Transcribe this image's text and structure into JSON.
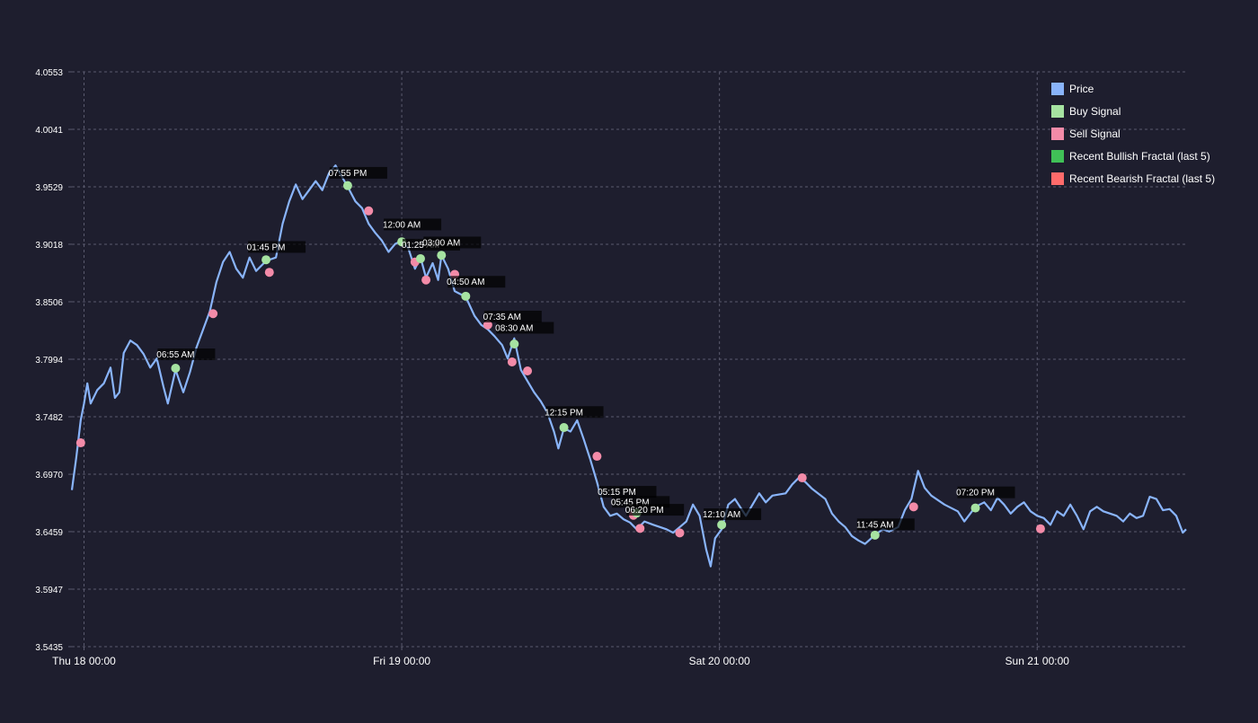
{
  "colors": {
    "background": "#1e1e2e",
    "grid": "#5a5a6e",
    "text": "#ffffff",
    "price": "#89b4fa",
    "buy": "#a6e3a1",
    "sell": "#f38ba8",
    "bullish_fractal": "#40c057",
    "bearish_fractal": "#ff6b6b",
    "label_box": "#000000"
  },
  "chart_data": {
    "type": "line",
    "title": "",
    "xlabel": "",
    "ylabel": "",
    "grid": true,
    "legend_position": "top-right",
    "x_range": [
      "2025-09-17 23:05",
      "2025-09-21 11:15"
    ],
    "ylim": [
      3.5435,
      4.0553
    ],
    "yticks": [
      3.5435,
      3.5947,
      3.6459,
      3.697,
      3.7482,
      3.7994,
      3.8506,
      3.9018,
      3.9529,
      4.0041,
      4.0553
    ],
    "ytick_labels": [
      "3.5435",
      "3.5947",
      "3.6459",
      "3.6970",
      "3.7482",
      "3.7994",
      "3.8506",
      "3.9018",
      "3.9529",
      "4.0041",
      "4.0553"
    ],
    "xticks": [
      {
        "time": "2025-09-18 00:00",
        "label": "Thu 18 00:00"
      },
      {
        "time": "2025-09-19 00:00",
        "label": "Fri 19 00:00"
      },
      {
        "time": "2025-09-20 00:00",
        "label": "Sat 20 00:00"
      },
      {
        "time": "2025-09-21 00:00",
        "label": "Sun 21 00:00"
      }
    ],
    "legend": [
      {
        "key": "price",
        "label": "Price"
      },
      {
        "key": "buy",
        "label": "Buy Signal"
      },
      {
        "key": "sell",
        "label": "Sell Signal"
      },
      {
        "key": "bullish_fractal",
        "label": "Recent Bullish Fractal (last 5)"
      },
      {
        "key": "bearish_fractal",
        "label": "Recent Bearish Fractal (last 5)"
      }
    ],
    "series": [
      {
        "name": "Price",
        "points": [
          [
            "2025-09-17 23:05",
            3.683
          ],
          [
            "2025-09-17 23:25",
            3.712
          ],
          [
            "2025-09-17 23:45",
            3.745
          ],
          [
            "2025-09-18 00:00",
            3.76
          ],
          [
            "2025-09-18 00:15",
            3.778
          ],
          [
            "2025-09-18 00:30",
            3.76
          ],
          [
            "2025-09-18 01:00",
            3.772
          ],
          [
            "2025-09-18 01:30",
            3.778
          ],
          [
            "2025-09-18 02:00",
            3.792
          ],
          [
            "2025-09-18 02:20",
            3.765
          ],
          [
            "2025-09-18 02:40",
            3.77
          ],
          [
            "2025-09-18 03:00",
            3.805
          ],
          [
            "2025-09-18 03:30",
            3.816
          ],
          [
            "2025-09-18 04:00",
            3.812
          ],
          [
            "2025-09-18 04:30",
            3.804
          ],
          [
            "2025-09-18 05:00",
            3.792
          ],
          [
            "2025-09-18 05:30",
            3.8
          ],
          [
            "2025-09-18 06:00",
            3.775
          ],
          [
            "2025-09-18 06:20",
            3.76
          ],
          [
            "2025-09-18 06:55",
            3.79
          ],
          [
            "2025-09-18 07:30",
            3.77
          ],
          [
            "2025-09-18 08:00",
            3.788
          ],
          [
            "2025-09-18 08:30",
            3.81
          ],
          [
            "2025-09-18 09:00",
            3.826
          ],
          [
            "2025-09-18 09:30",
            3.842
          ],
          [
            "2025-09-18 10:00",
            3.868
          ],
          [
            "2025-09-18 10:30",
            3.886
          ],
          [
            "2025-09-18 11:00",
            3.895
          ],
          [
            "2025-09-18 11:30",
            3.88
          ],
          [
            "2025-09-18 12:00",
            3.872
          ],
          [
            "2025-09-18 12:30",
            3.89
          ],
          [
            "2025-09-18 13:00",
            3.878
          ],
          [
            "2025-09-18 13:45",
            3.887
          ],
          [
            "2025-09-18 14:30",
            3.89
          ],
          [
            "2025-09-18 15:00",
            3.92
          ],
          [
            "2025-09-18 15:30",
            3.94
          ],
          [
            "2025-09-18 16:00",
            3.955
          ],
          [
            "2025-09-18 16:30",
            3.942
          ],
          [
            "2025-09-18 17:00",
            3.95
          ],
          [
            "2025-09-18 17:30",
            3.958
          ],
          [
            "2025-09-18 18:00",
            3.95
          ],
          [
            "2025-09-18 18:30",
            3.965
          ],
          [
            "2025-09-18 19:00",
            3.972
          ],
          [
            "2025-09-18 19:55",
            3.953
          ],
          [
            "2025-09-18 20:30",
            3.94
          ],
          [
            "2025-09-18 21:00",
            3.934
          ],
          [
            "2025-09-18 21:30",
            3.92
          ],
          [
            "2025-09-18 22:00",
            3.912
          ],
          [
            "2025-09-18 22:30",
            3.905
          ],
          [
            "2025-09-18 23:00",
            3.895
          ],
          [
            "2025-09-18 23:30",
            3.902
          ],
          [
            "2025-09-19 00:00",
            3.905
          ],
          [
            "2025-09-19 00:30",
            3.898
          ],
          [
            "2025-09-19 01:00",
            3.88
          ],
          [
            "2025-09-19 01:25",
            3.89
          ],
          [
            "2025-09-19 01:50",
            3.872
          ],
          [
            "2025-09-19 02:20",
            3.885
          ],
          [
            "2025-09-19 02:45",
            3.87
          ],
          [
            "2025-09-19 03:00",
            3.892
          ],
          [
            "2025-09-19 03:30",
            3.88
          ],
          [
            "2025-09-19 04:00",
            3.86
          ],
          [
            "2025-09-19 04:50",
            3.855
          ],
          [
            "2025-09-19 05:30",
            3.838
          ],
          [
            "2025-09-19 06:00",
            3.83
          ],
          [
            "2025-09-19 06:30",
            3.826
          ],
          [
            "2025-09-19 07:00",
            3.82
          ],
          [
            "2025-09-19 07:35",
            3.812
          ],
          [
            "2025-09-19 08:00",
            3.8
          ],
          [
            "2025-09-19 08:30",
            3.818
          ],
          [
            "2025-09-19 09:00",
            3.79
          ],
          [
            "2025-09-19 09:30",
            3.78
          ],
          [
            "2025-09-19 10:00",
            3.77
          ],
          [
            "2025-09-19 10:30",
            3.762
          ],
          [
            "2025-09-19 11:00",
            3.752
          ],
          [
            "2025-09-19 11:30",
            3.735
          ],
          [
            "2025-09-19 11:50",
            3.72
          ],
          [
            "2025-09-19 12:15",
            3.738
          ],
          [
            "2025-09-19 12:45",
            3.735
          ],
          [
            "2025-09-19 13:15",
            3.745
          ],
          [
            "2025-09-19 13:45",
            3.728
          ],
          [
            "2025-09-19 14:15",
            3.71
          ],
          [
            "2025-09-19 14:45",
            3.69
          ],
          [
            "2025-09-19 15:15",
            3.668
          ],
          [
            "2025-09-19 15:45",
            3.66
          ],
          [
            "2025-09-19 16:15",
            3.662
          ],
          [
            "2025-09-19 16:45",
            3.657
          ],
          [
            "2025-09-19 17:15",
            3.654
          ],
          [
            "2025-09-19 17:45",
            3.648
          ],
          [
            "2025-09-19 18:20",
            3.655
          ],
          [
            "2025-09-19 19:00",
            3.652
          ],
          [
            "2025-09-19 19:30",
            3.65
          ],
          [
            "2025-09-19 20:00",
            3.648
          ],
          [
            "2025-09-19 20:30",
            3.645
          ],
          [
            "2025-09-19 21:00",
            3.65
          ],
          [
            "2025-09-19 21:30",
            3.655
          ],
          [
            "2025-09-19 22:00",
            3.67
          ],
          [
            "2025-09-19 22:30",
            3.66
          ],
          [
            "2025-09-19 23:00",
            3.63
          ],
          [
            "2025-09-19 23:20",
            3.615
          ],
          [
            "2025-09-19 23:40",
            3.64
          ],
          [
            "2025-09-20 00:10",
            3.648
          ],
          [
            "2025-09-20 00:40",
            3.67
          ],
          [
            "2025-09-20 01:10",
            3.675
          ],
          [
            "2025-09-20 02:00",
            3.66
          ],
          [
            "2025-09-20 02:30",
            3.67
          ],
          [
            "2025-09-20 03:00",
            3.68
          ],
          [
            "2025-09-20 03:30",
            3.672
          ],
          [
            "2025-09-20 04:00",
            3.678
          ],
          [
            "2025-09-20 05:00",
            3.68
          ],
          [
            "2025-09-20 05:30",
            3.688
          ],
          [
            "2025-09-20 06:00",
            3.694
          ],
          [
            "2025-09-20 06:30",
            3.69
          ],
          [
            "2025-09-20 07:00",
            3.684
          ],
          [
            "2025-09-20 08:00",
            3.675
          ],
          [
            "2025-09-20 08:30",
            3.662
          ],
          [
            "2025-09-20 09:00",
            3.655
          ],
          [
            "2025-09-20 09:30",
            3.65
          ],
          [
            "2025-09-20 10:00",
            3.642
          ],
          [
            "2025-09-20 10:30",
            3.638
          ],
          [
            "2025-09-20 11:00",
            3.635
          ],
          [
            "2025-09-20 11:45",
            3.643
          ],
          [
            "2025-09-20 12:20",
            3.648
          ],
          [
            "2025-09-20 12:50",
            3.646
          ],
          [
            "2025-09-20 13:30",
            3.65
          ],
          [
            "2025-09-20 14:00",
            3.665
          ],
          [
            "2025-09-20 14:30",
            3.675
          ],
          [
            "2025-09-20 15:00",
            3.7
          ],
          [
            "2025-09-20 15:30",
            3.685
          ],
          [
            "2025-09-20 16:00",
            3.678
          ],
          [
            "2025-09-20 17:00",
            3.67
          ],
          [
            "2025-09-20 18:00",
            3.664
          ],
          [
            "2025-09-20 18:30",
            3.655
          ],
          [
            "2025-09-20 19:20",
            3.668
          ],
          [
            "2025-09-20 20:00",
            3.672
          ],
          [
            "2025-09-20 20:30",
            3.665
          ],
          [
            "2025-09-20 21:00",
            3.676
          ],
          [
            "2025-09-20 21:30",
            3.67
          ],
          [
            "2025-09-20 22:00",
            3.662
          ],
          [
            "2025-09-20 22:30",
            3.668
          ],
          [
            "2025-09-20 23:00",
            3.672
          ],
          [
            "2025-09-20 23:30",
            3.664
          ],
          [
            "2025-09-21 00:00",
            3.66
          ],
          [
            "2025-09-21 00:30",
            3.658
          ],
          [
            "2025-09-21 01:00",
            3.652
          ],
          [
            "2025-09-21 01:30",
            3.664
          ],
          [
            "2025-09-21 02:00",
            3.66
          ],
          [
            "2025-09-21 02:30",
            3.67
          ],
          [
            "2025-09-21 03:00",
            3.66
          ],
          [
            "2025-09-21 03:30",
            3.648
          ],
          [
            "2025-09-21 04:00",
            3.664
          ],
          [
            "2025-09-21 04:30",
            3.668
          ],
          [
            "2025-09-21 05:00",
            3.664
          ],
          [
            "2025-09-21 06:00",
            3.66
          ],
          [
            "2025-09-21 06:30",
            3.655
          ],
          [
            "2025-09-21 07:00",
            3.662
          ],
          [
            "2025-09-21 07:30",
            3.658
          ],
          [
            "2025-09-21 08:00",
            3.66
          ],
          [
            "2025-09-21 08:30",
            3.677
          ],
          [
            "2025-09-21 09:00",
            3.675
          ],
          [
            "2025-09-21 09:30",
            3.665
          ],
          [
            "2025-09-21 10:00",
            3.666
          ],
          [
            "2025-09-21 10:30",
            3.66
          ],
          [
            "2025-09-21 11:00",
            3.645
          ],
          [
            "2025-09-21 11:15",
            3.648
          ]
        ]
      }
    ],
    "buy_signals": [
      [
        "2025-09-18 06:55",
        3.7914
      ],
      [
        "2025-09-18 13:45",
        3.888
      ],
      [
        "2025-09-18 19:55",
        3.954
      ],
      [
        "2025-09-19 00:00",
        3.904
      ],
      [
        "2025-09-19 01:25",
        3.889
      ],
      [
        "2025-09-19 03:00",
        3.892
      ],
      [
        "2025-09-19 04:50",
        3.8555
      ],
      [
        "2025-09-19 08:30",
        3.813
      ],
      [
        "2025-09-19 12:15",
        3.7386
      ],
      [
        "2025-09-19 17:45",
        3.6625
      ],
      [
        "2025-09-20 00:10",
        3.652
      ],
      [
        "2025-09-20 11:45",
        3.6428
      ],
      [
        "2025-09-20 19:20",
        3.667
      ]
    ],
    "sell_signals": [
      [
        "2025-09-17 23:45",
        3.725
      ],
      [
        "2025-09-18 09:45",
        3.84
      ],
      [
        "2025-09-18 14:00",
        3.8768
      ],
      [
        "2025-09-18 21:30",
        3.9315
      ],
      [
        "2025-09-19 01:00",
        3.886
      ],
      [
        "2025-09-19 01:50",
        3.87
      ],
      [
        "2025-09-19 04:00",
        3.875
      ],
      [
        "2025-09-19 06:30",
        3.83
      ],
      [
        "2025-09-19 08:20",
        3.797
      ],
      [
        "2025-09-19 09:30",
        3.789
      ],
      [
        "2025-09-19 14:45",
        3.713
      ],
      [
        "2025-09-19 17:30",
        3.6605
      ],
      [
        "2025-09-19 18:00",
        3.6488
      ],
      [
        "2025-09-19 21:00",
        3.6448
      ],
      [
        "2025-09-20 06:15",
        3.6938
      ],
      [
        "2025-09-20 14:40",
        3.668
      ],
      [
        "2025-09-21 00:15",
        3.6485
      ]
    ],
    "time_labels": [
      {
        "time": "2025-09-18 06:55",
        "value": 3.7994,
        "text": "06:55 AM"
      },
      {
        "time": "2025-09-18 13:45",
        "value": 3.895,
        "text": "01:45 PM"
      },
      {
        "time": "2025-09-18 19:55",
        "value": 3.961,
        "text": "07:55 PM"
      },
      {
        "time": "2025-09-19 00:00",
        "value": 3.915,
        "text": "12:00 AM"
      },
      {
        "time": "2025-09-19 01:25",
        "value": 3.897,
        "text": "01:25 AM"
      },
      {
        "time": "2025-09-19 03:00",
        "value": 3.899,
        "text": "03:00 AM"
      },
      {
        "time": "2025-09-19 04:50",
        "value": 3.864,
        "text": "04:50 AM"
      },
      {
        "time": "2025-09-19 07:35",
        "value": 3.833,
        "text": "07:35 AM"
      },
      {
        "time": "2025-09-19 08:30",
        "value": 3.823,
        "text": "08:30 AM"
      },
      {
        "time": "2025-09-19 12:15",
        "value": 3.748,
        "text": "12:15 PM"
      },
      {
        "time": "2025-09-19 16:15",
        "value": 3.677,
        "text": "05:15 PM"
      },
      {
        "time": "2025-09-19 17:15",
        "value": 3.668,
        "text": "05:45 PM"
      },
      {
        "time": "2025-09-19 18:20",
        "value": 3.661,
        "text": "06:20 PM"
      },
      {
        "time": "2025-09-20 00:10",
        "value": 3.657,
        "text": "12:10 AM"
      },
      {
        "time": "2025-09-20 11:45",
        "value": 3.648,
        "text": "11:45 AM"
      },
      {
        "time": "2025-09-20 19:20",
        "value": 3.6765,
        "text": "07:20 PM"
      }
    ]
  }
}
